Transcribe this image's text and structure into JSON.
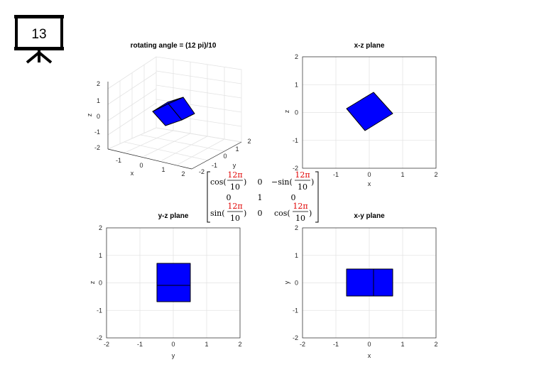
{
  "badge": {
    "number": "13"
  },
  "plots": {
    "p3d": {
      "title": "rotating angle = (12 pi)/10",
      "xlabel": "x",
      "ylabel": "y",
      "zlabel": "z",
      "x_ticks": [
        "-1",
        "0",
        "1",
        "2"
      ],
      "y_ticks": [
        "-2",
        "-1",
        "0",
        "1",
        "2"
      ],
      "z_ticks": [
        "-2",
        "-1",
        "0",
        "1",
        "2"
      ],
      "y_tick_extra": "-2"
    },
    "xz": {
      "title": "x-z plane",
      "xlabel": "x",
      "ylabel": "z",
      "x_ticks": [
        "-1",
        "0",
        "1",
        "2"
      ],
      "y_ticks": [
        "-2",
        "-1",
        "0",
        "1",
        "2"
      ]
    },
    "yz": {
      "title": "y-z plane",
      "xlabel": "y",
      "ylabel": "z",
      "x_ticks": [
        "-2",
        "-1",
        "0",
        "1",
        "2"
      ],
      "y_ticks": [
        "-2",
        "-1",
        "0",
        "1",
        "2"
      ]
    },
    "xy": {
      "title": "x-y plane",
      "xlabel": "x",
      "ylabel": "y",
      "x_ticks": [
        "-2",
        "-1",
        "0",
        "1",
        "2"
      ],
      "y_ticks": [
        "-2",
        "-1",
        "0",
        "1",
        "2"
      ]
    }
  },
  "matrix": {
    "cos": "cos(",
    "sin": "sin(",
    "neg_sin": "−sin(",
    "close": ")",
    "num": "12π",
    "den": "10",
    "zero": "0",
    "one": "1"
  },
  "colors": {
    "cube_face": "#0000ff",
    "matrix_highlight": "#e00000"
  }
}
